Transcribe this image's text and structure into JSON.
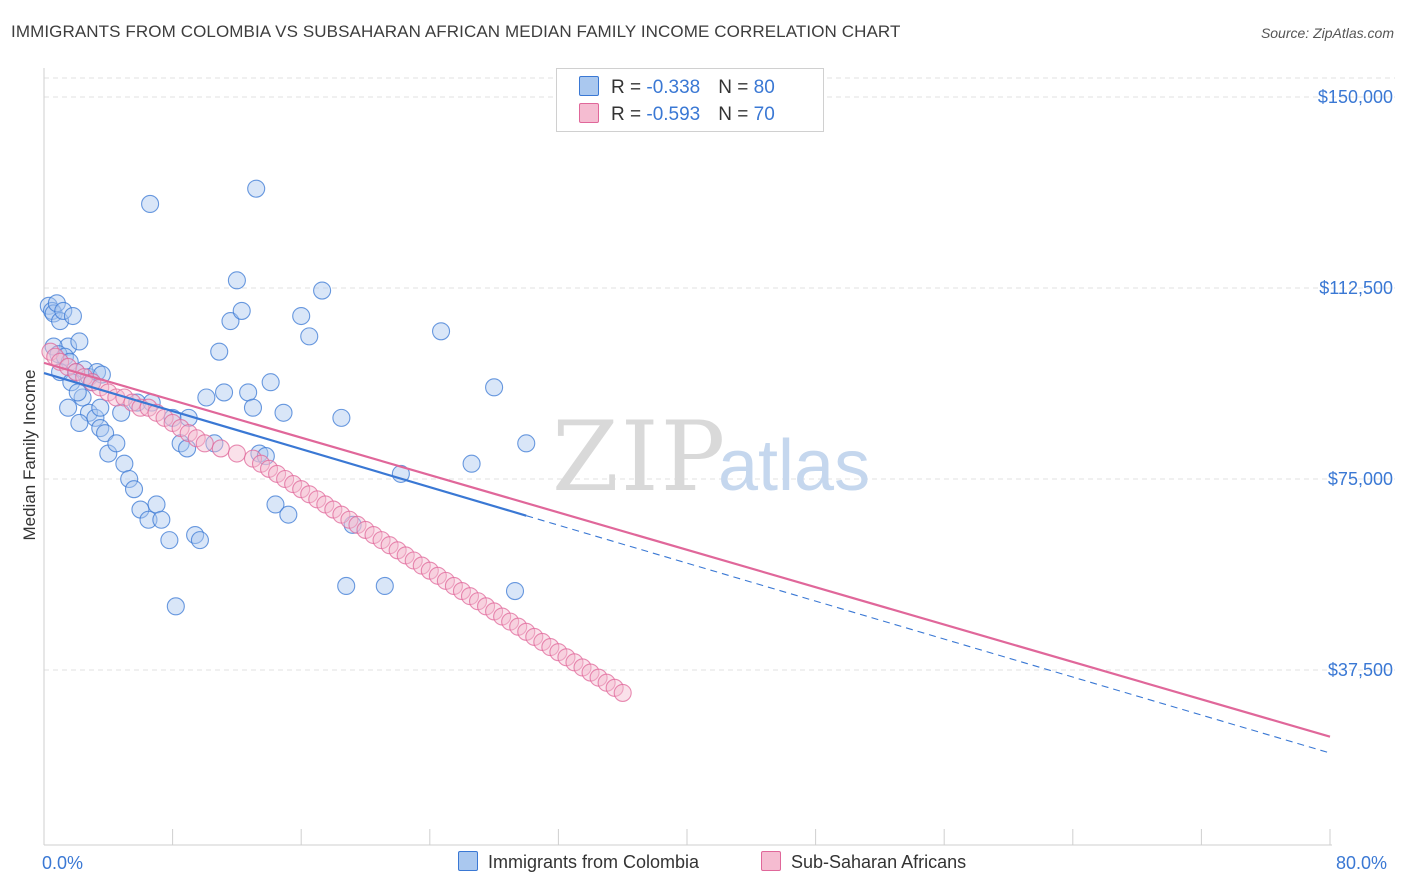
{
  "title": "IMMIGRANTS FROM COLOMBIA VS SUBSAHARAN AFRICAN MEDIAN FAMILY INCOME CORRELATION CHART",
  "source": "Source: ZipAtlas.com",
  "watermark": {
    "zip": "ZIP",
    "atlas": "atlas"
  },
  "legend": {
    "series1": {
      "r_label": "R = ",
      "r_value": "-0.338",
      "n_label": "N = ",
      "n_value": "80"
    },
    "series2": {
      "r_label": "R = ",
      "r_value": "-0.593",
      "n_label": "N = ",
      "n_value": "70"
    }
  },
  "bottom_legend": {
    "series1": "Immigrants from Colombia",
    "series2": "Sub-Saharan Africans"
  },
  "colors": {
    "blue": "#3a78d4",
    "pink": "#e0679a",
    "blue_fill": "#aac8ef",
    "pink_fill": "#f5bcd1"
  },
  "chart_data": {
    "type": "scatter",
    "title": "IMMIGRANTS FROM COLOMBIA VS SUBSAHARAN AFRICAN MEDIAN FAMILY INCOME CORRELATION CHART",
    "xlabel": "",
    "ylabel": "Median Family Income",
    "xlim": [
      0,
      80
    ],
    "ylim": [
      0,
      155000
    ],
    "x_tick_labels": [
      "0.0%",
      "80.0%"
    ],
    "y_ticks": [
      37500,
      75000,
      112500,
      150000
    ],
    "y_tick_labels": [
      "$37,500",
      "$75,000",
      "$112,500",
      "$150,000"
    ],
    "grid": true,
    "series": [
      {
        "name": "Immigrants from Colombia",
        "color": "#3a78d4",
        "r": -0.338,
        "n": 80,
        "trend": {
          "x0": 0,
          "y0": 95800,
          "x1": 30,
          "y1": 67800,
          "dashed_to_x": 80,
          "dashed_to_y": 21200
        },
        "points": [
          [
            0.3,
            109
          ],
          [
            0.5,
            108
          ],
          [
            0.6,
            107.5
          ],
          [
            0.8,
            109.5
          ],
          [
            1.0,
            106
          ],
          [
            1.2,
            108
          ],
          [
            1.5,
            101
          ],
          [
            1.8,
            107
          ],
          [
            0.6,
            101
          ],
          [
            0.9,
            99.5
          ],
          [
            1.3,
            99
          ],
          [
            1.6,
            98
          ],
          [
            2.0,
            96
          ],
          [
            2.2,
            102
          ],
          [
            2.5,
            96.5
          ],
          [
            2.8,
            95
          ],
          [
            3.0,
            94
          ],
          [
            3.3,
            96
          ],
          [
            3.6,
            95.5
          ],
          [
            2.4,
            91
          ],
          [
            1.0,
            96
          ],
          [
            1.7,
            94
          ],
          [
            2.1,
            92
          ],
          [
            2.8,
            88
          ],
          [
            3.2,
            87
          ],
          [
            3.5,
            85
          ],
          [
            3.8,
            84
          ],
          [
            4.0,
            80
          ],
          [
            4.5,
            82
          ],
          [
            5.0,
            78
          ],
          [
            5.3,
            75
          ],
          [
            5.6,
            73
          ],
          [
            6.0,
            69
          ],
          [
            6.5,
            67
          ],
          [
            7.0,
            70
          ],
          [
            7.3,
            67
          ],
          [
            7.8,
            63
          ],
          [
            8.2,
            50
          ],
          [
            8.5,
            82
          ],
          [
            8.9,
            81
          ],
          [
            9.4,
            64
          ],
          [
            9.7,
            63
          ],
          [
            10.1,
            91
          ],
          [
            10.6,
            82
          ],
          [
            10.9,
            100
          ],
          [
            11.2,
            92
          ],
          [
            11.6,
            106
          ],
          [
            12.0,
            114
          ],
          [
            12.3,
            108
          ],
          [
            12.7,
            92
          ],
          [
            13.0,
            89
          ],
          [
            13.4,
            80
          ],
          [
            13.8,
            79.5
          ],
          [
            14.1,
            94
          ],
          [
            14.4,
            70
          ],
          [
            14.9,
            88
          ],
          [
            15.2,
            68
          ],
          [
            16.0,
            107
          ],
          [
            16.5,
            103
          ],
          [
            17.3,
            112
          ],
          [
            18.5,
            87
          ],
          [
            18.8,
            54
          ],
          [
            19.2,
            66
          ],
          [
            21.2,
            54
          ],
          [
            22.2,
            76
          ],
          [
            24.7,
            104
          ],
          [
            26.6,
            78
          ],
          [
            28.0,
            93
          ],
          [
            29.3,
            53
          ],
          [
            30.0,
            82
          ],
          [
            6.6,
            129
          ],
          [
            13.2,
            132
          ],
          [
            5.8,
            90
          ],
          [
            6.7,
            90
          ],
          [
            8.0,
            87
          ],
          [
            9.0,
            87
          ],
          [
            1.5,
            89
          ],
          [
            2.2,
            86
          ],
          [
            3.5,
            89
          ],
          [
            4.8,
            88
          ]
        ]
      },
      {
        "name": "Sub-Saharan Africans",
        "color": "#e0679a",
        "r": -0.593,
        "n": 70,
        "trend": {
          "x0": 0,
          "y0": 97800,
          "x1": 80,
          "y1": 24400
        },
        "points": [
          [
            0.4,
            100
          ],
          [
            0.7,
            99
          ],
          [
            1.0,
            98
          ],
          [
            1.5,
            97
          ],
          [
            2.0,
            96
          ],
          [
            2.5,
            95
          ],
          [
            3.0,
            94
          ],
          [
            3.5,
            93
          ],
          [
            4.0,
            92
          ],
          [
            4.5,
            91
          ],
          [
            5.0,
            91
          ],
          [
            5.5,
            90
          ],
          [
            6.0,
            89
          ],
          [
            6.5,
            89
          ],
          [
            7.0,
            88
          ],
          [
            7.5,
            87
          ],
          [
            8.0,
            86
          ],
          [
            8.5,
            85
          ],
          [
            9.0,
            84
          ],
          [
            9.5,
            83
          ],
          [
            10.0,
            82
          ],
          [
            11.0,
            81
          ],
          [
            12.0,
            80
          ],
          [
            13.0,
            79
          ],
          [
            13.5,
            78
          ],
          [
            14.0,
            77
          ],
          [
            14.5,
            76
          ],
          [
            15.0,
            75
          ],
          [
            15.5,
            74
          ],
          [
            16.0,
            73
          ],
          [
            16.5,
            72
          ],
          [
            17.0,
            71
          ],
          [
            17.5,
            70
          ],
          [
            18.0,
            69
          ],
          [
            18.5,
            68
          ],
          [
            19.0,
            67
          ],
          [
            19.5,
            66
          ],
          [
            20.0,
            65
          ],
          [
            20.5,
            64
          ],
          [
            21.0,
            63
          ],
          [
            21.5,
            62
          ],
          [
            22.0,
            61
          ],
          [
            22.5,
            60
          ],
          [
            23.0,
            59
          ],
          [
            23.5,
            58
          ],
          [
            24.0,
            57
          ],
          [
            24.5,
            56
          ],
          [
            25.0,
            55
          ],
          [
            25.5,
            54
          ],
          [
            26.0,
            53
          ],
          [
            26.5,
            52
          ],
          [
            27.0,
            51
          ],
          [
            27.5,
            50
          ],
          [
            28.0,
            49
          ],
          [
            28.5,
            48
          ],
          [
            29.0,
            47
          ],
          [
            29.5,
            46
          ],
          [
            30.0,
            45
          ],
          [
            30.5,
            44
          ],
          [
            31.0,
            43
          ],
          [
            31.5,
            42
          ],
          [
            32.0,
            41
          ],
          [
            32.5,
            40
          ],
          [
            33.0,
            39
          ],
          [
            33.5,
            38
          ],
          [
            34.0,
            37
          ],
          [
            34.5,
            36
          ],
          [
            35.0,
            35
          ],
          [
            35.5,
            34
          ],
          [
            36.0,
            33
          ]
        ]
      }
    ]
  }
}
